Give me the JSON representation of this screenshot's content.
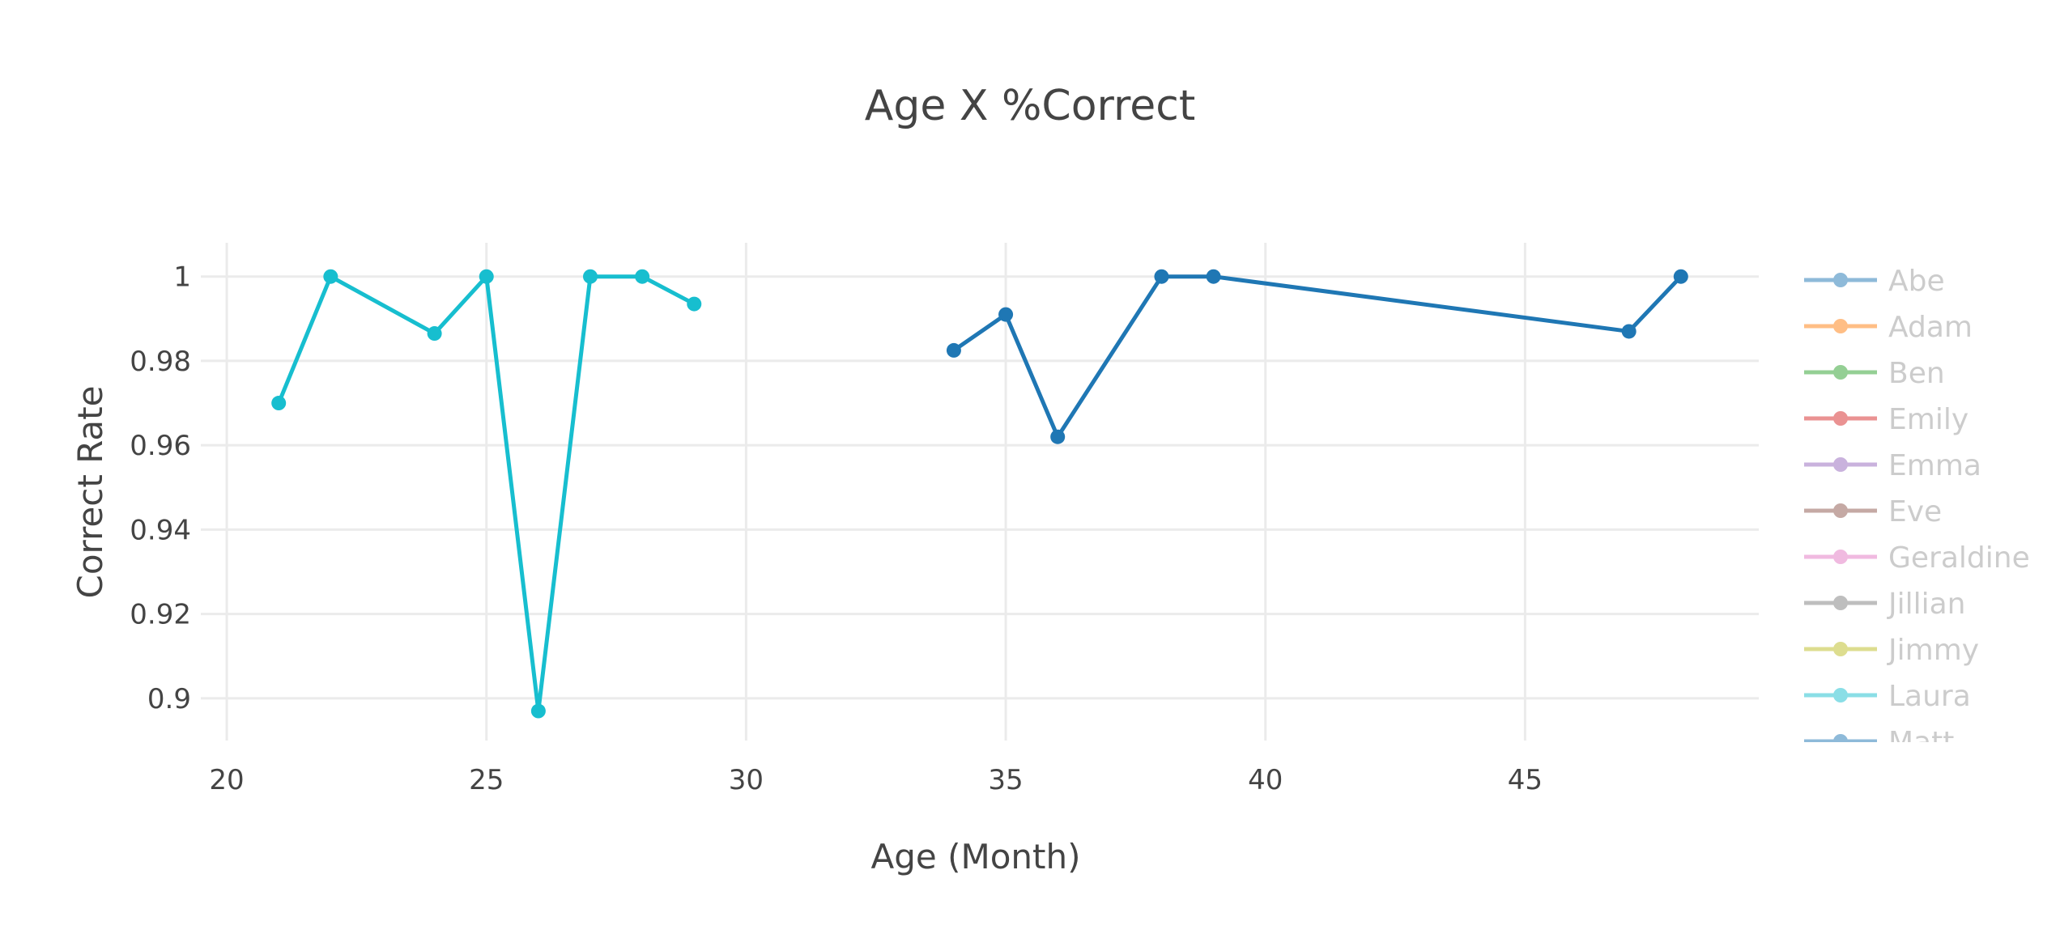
{
  "chart_data": {
    "type": "line",
    "title": "Age X %Correct",
    "xlabel": "Age (Month)",
    "ylabel": "Correct Rate",
    "xlim": [
      19.5,
      49.5
    ],
    "ylim": [
      0.89,
      1.008
    ],
    "x_ticks": [
      20,
      25,
      30,
      35,
      40,
      45
    ],
    "x_tick_labels": [
      "20",
      "25",
      "30",
      "35",
      "40",
      "45"
    ],
    "y_ticks": [
      0.9,
      0.92,
      0.94,
      0.96,
      0.98,
      1
    ],
    "y_tick_labels": [
      "0.9",
      "0.92",
      "0.94",
      "0.96",
      "0.98",
      "1"
    ],
    "grid": true,
    "legend_placement": "right",
    "legend": [
      {
        "name": "Abe",
        "color": "#1f77b4"
      },
      {
        "name": "Adam",
        "color": "#ff7f0e"
      },
      {
        "name": "Ben",
        "color": "#2ca02c"
      },
      {
        "name": "Emily",
        "color": "#d62728"
      },
      {
        "name": "Emma",
        "color": "#9467bd"
      },
      {
        "name": "Eve",
        "color": "#8c564b"
      },
      {
        "name": "Geraldine",
        "color": "#e377c2"
      },
      {
        "name": "Jillian",
        "color": "#7f7f7f"
      },
      {
        "name": "Jimmy",
        "color": "#bcbd22"
      },
      {
        "name": "Laura",
        "color": "#17becf"
      },
      {
        "name": "Matt",
        "color": "#1f77b4"
      }
    ],
    "series": [
      {
        "name": "Laura",
        "color": "#17becf",
        "x": [
          21,
          22,
          24,
          25,
          26,
          27,
          28,
          29
        ],
        "y": [
          0.97,
          1.0,
          0.9865,
          1.0,
          0.897,
          1.0,
          1.0,
          0.9935
        ]
      },
      {
        "name": "Matt",
        "color": "#1f77b4",
        "x": [
          34,
          35,
          36,
          38,
          39,
          47,
          48
        ],
        "y": [
          0.9825,
          0.991,
          0.962,
          1.0,
          1.0,
          0.987,
          1.0
        ]
      }
    ]
  }
}
